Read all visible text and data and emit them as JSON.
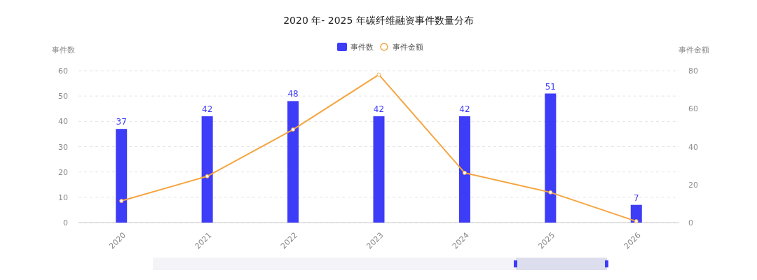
{
  "chart_data": {
    "type": "bar",
    "title": "2020 年- 2025 年碳纤维融资事件数量分布",
    "ylabel": "事件数",
    "y2label": "事件金额",
    "categories": [
      "2020",
      "2021",
      "2022",
      "2023",
      "2024",
      "2025",
      "2026"
    ],
    "series": [
      {
        "name": "事件数",
        "color": "#3d3cf7",
        "values": [
          37,
          42,
          48,
          42,
          42,
          51,
          7
        ],
        "value_labels": [
          "37",
          "42",
          "48",
          "42",
          "42",
          "51",
          "7"
        ]
      },
      {
        "name": "事件金额",
        "type": "line",
        "axis": "y2",
        "color": "#f5a540",
        "marker": "circle",
        "values": [
          11.4,
          24.4,
          49,
          77.9,
          26.2,
          15.9,
          0.7
        ]
      }
    ],
    "ylim": [
      0,
      60
    ],
    "yticks": [
      0,
      10,
      20,
      30,
      40,
      50,
      60
    ],
    "y2lim": [
      0,
      80
    ],
    "y2ticks": [
      0,
      20,
      40,
      60,
      80
    ],
    "grid": "y",
    "legend": "top"
  }
}
